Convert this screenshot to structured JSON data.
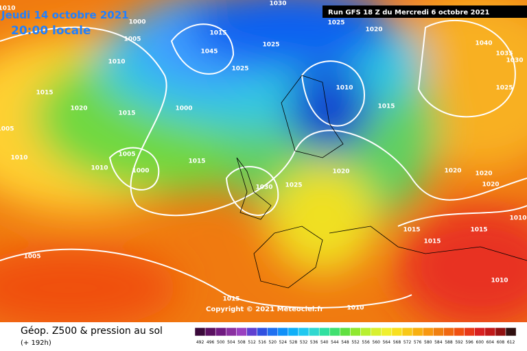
{
  "header": {
    "date": "Jeudi 14 octobre 2021",
    "time": "20:00 locale",
    "run": "Run GFS 18 Z du Mercredi 6 octobre 2021"
  },
  "map": {
    "isobar_labels": [
      "1010",
      "1000",
      "1005",
      "1010",
      "1015",
      "1020",
      "1015",
      "1000",
      "1005",
      "1010",
      "1010",
      "1005",
      "1000",
      "1015",
      "1030",
      "1025",
      "1015",
      "1045",
      "1025",
      "1030",
      "1025",
      "1020",
      "1025",
      "1010",
      "1015",
      "1020",
      "1040",
      "1035",
      "1030",
      "1025",
      "1020",
      "1020",
      "1020",
      "1015",
      "1015",
      "1015",
      "1010",
      "1005",
      "1015",
      "1010",
      "1010"
    ],
    "copyright": "Copyright © 2021 Meteociel.fr"
  },
  "footer": {
    "title": "Géop. Z500 & pression au sol",
    "lead": "(+ 192h)",
    "scale": [
      492,
      496,
      500,
      504,
      508,
      512,
      516,
      520,
      524,
      528,
      532,
      536,
      540,
      544,
      548,
      552,
      556,
      560,
      564,
      568,
      572,
      576,
      580,
      584,
      588,
      592,
      596,
      600,
      604,
      608,
      612
    ]
  }
}
